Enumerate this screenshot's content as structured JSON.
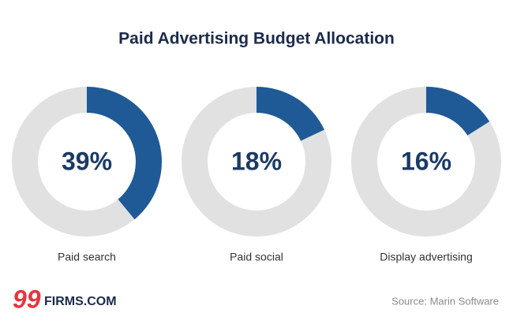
{
  "chart_data": {
    "type": "donut",
    "title": "Paid Advertising Budget Allocation",
    "categories": [
      "Paid search",
      "Paid social",
      "Display advertising"
    ],
    "values": [
      39,
      18,
      16
    ],
    "value_labels": [
      "39%",
      "18%",
      "16%"
    ],
    "color": "#1f5a96",
    "track_color": "#e1e1e1",
    "source": "Source: Marin Software"
  },
  "logo": {
    "mark": "99",
    "text": "FIRMS.COM"
  }
}
